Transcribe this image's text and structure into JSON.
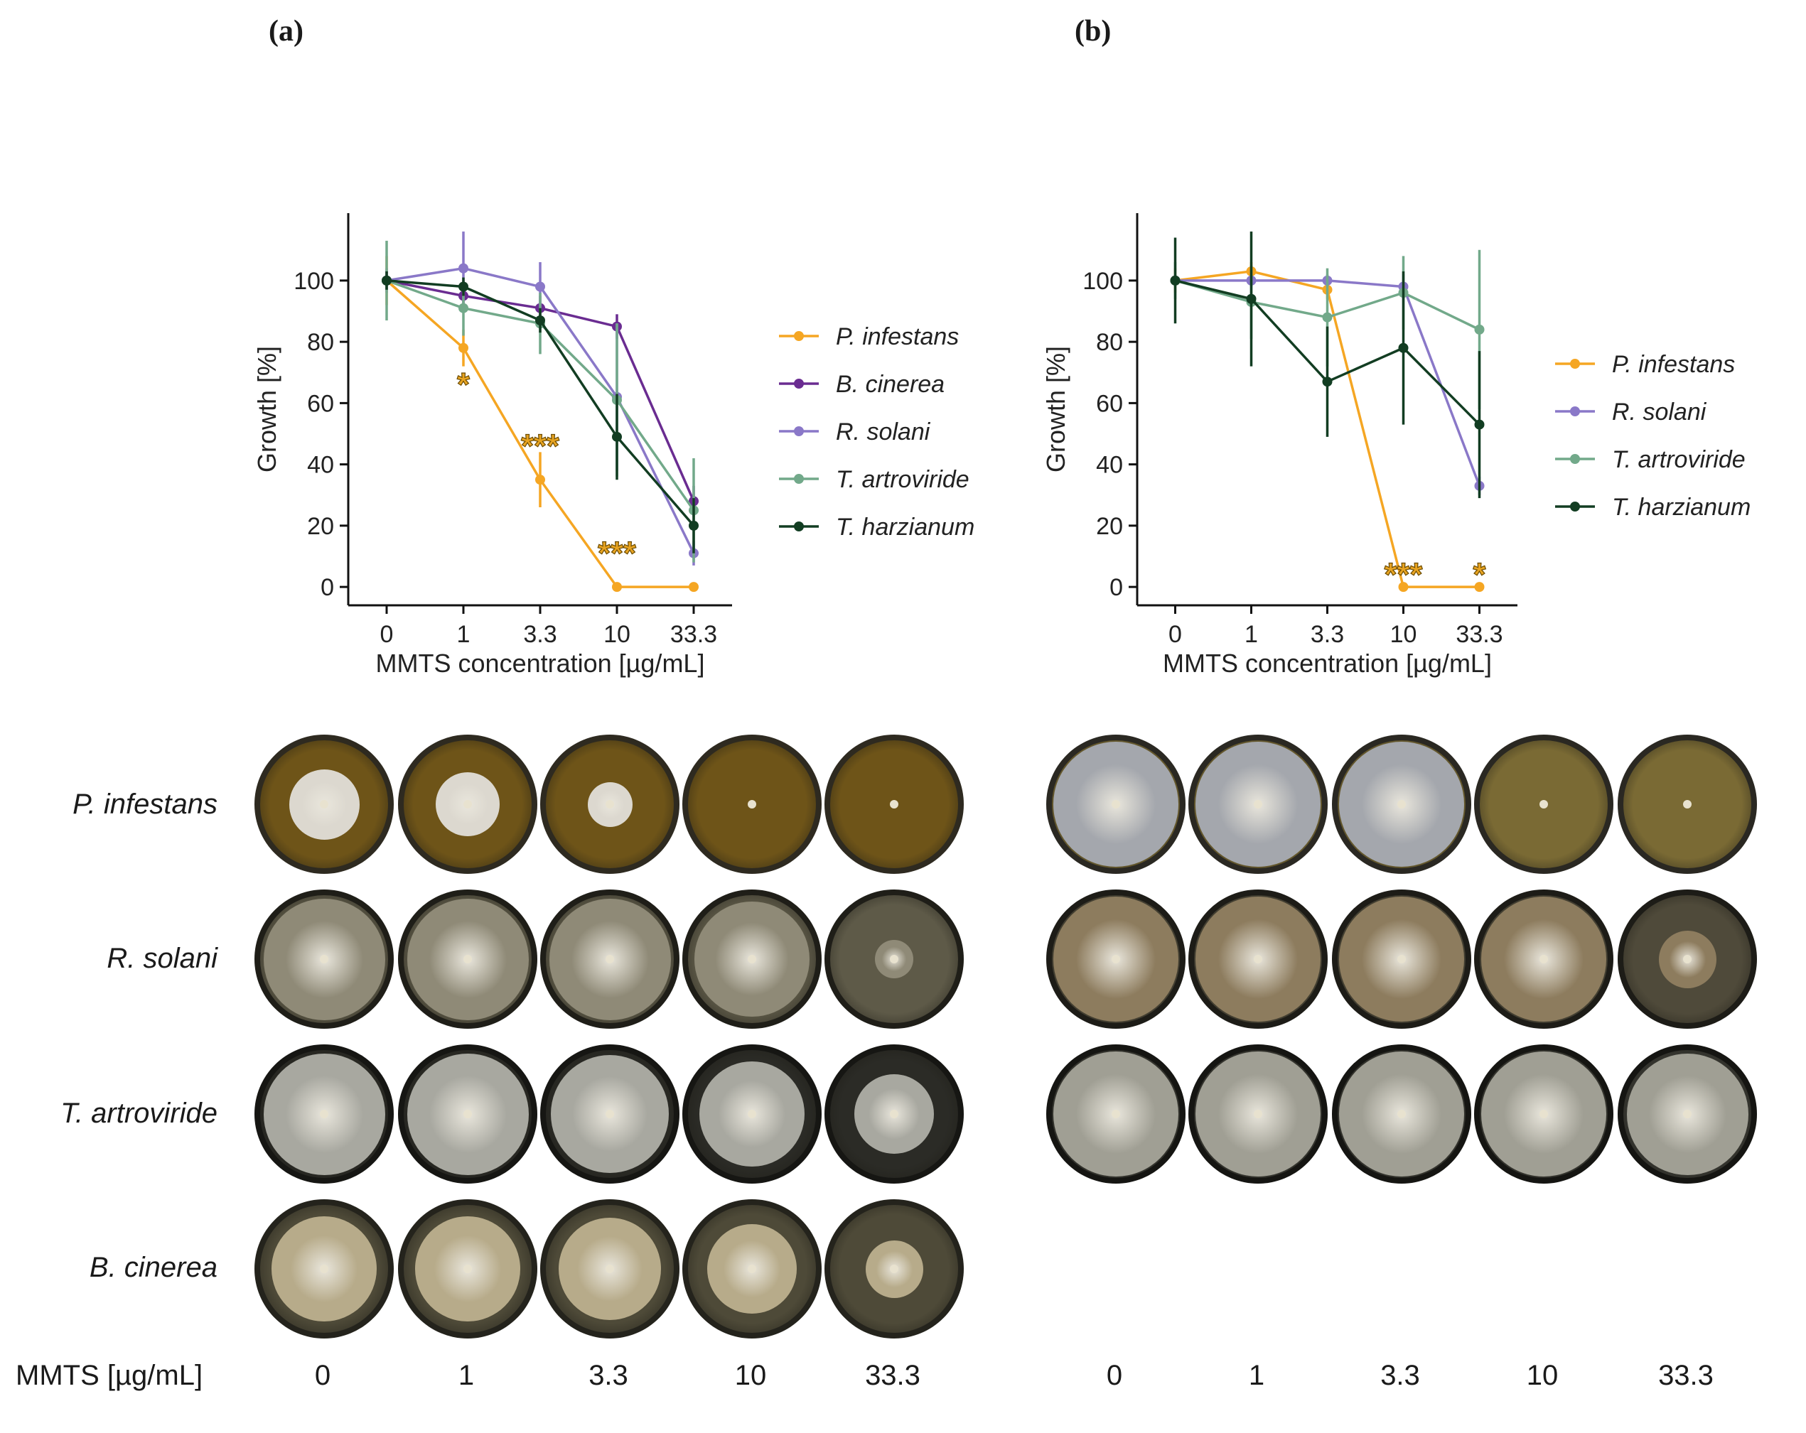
{
  "panel_labels": {
    "a": "(a)",
    "b": "(b)"
  },
  "chart_data": [
    {
      "type": "line",
      "panel": "(a)",
      "xlabel": "MMTS concentration [µg/mL]",
      "ylabel": "Growth [%]",
      "categories": [
        "0",
        "1",
        "3.3",
        "10",
        "33.3"
      ],
      "yticks": [
        0,
        20,
        40,
        60,
        80,
        100
      ],
      "ylim": [
        -6,
        122
      ],
      "series": [
        {
          "name": "P. infestans",
          "color": "#f5a623",
          "values": [
            100,
            78,
            35,
            0,
            0
          ],
          "err": [
            8,
            6,
            9,
            0,
            0
          ]
        },
        {
          "name": "B. cinerea",
          "color": "#6a2c91",
          "values": [
            100,
            95,
            91,
            85,
            28
          ],
          "err": [
            3,
            3,
            4,
            4,
            5
          ]
        },
        {
          "name": "R. solani",
          "color": "#8a78c8",
          "values": [
            100,
            104,
            98,
            62,
            11
          ],
          "err": [
            4,
            12,
            8,
            24,
            4
          ]
        },
        {
          "name": "T. artroviride",
          "color": "#72a98a",
          "values": [
            100,
            91,
            86,
            61,
            25
          ],
          "err": [
            13,
            9,
            10,
            25,
            17
          ]
        },
        {
          "name": "T. harzianum",
          "color": "#123d22",
          "values": [
            100,
            98,
            87,
            49,
            20
          ],
          "err": [
            3,
            3,
            4,
            14,
            9
          ]
        }
      ],
      "annotations": [
        {
          "x": "1",
          "y": 67,
          "text": "*"
        },
        {
          "x": "3.3",
          "y": 47,
          "text": "***"
        },
        {
          "x": "10",
          "y": 12,
          "text": "***"
        }
      ],
      "legend": "right"
    },
    {
      "type": "line",
      "panel": "(b)",
      "xlabel": "MMTS concentration [µg/mL]",
      "ylabel": "Growth [%]",
      "categories": [
        "0",
        "1",
        "3.3",
        "10",
        "33.3"
      ],
      "yticks": [
        0,
        20,
        40,
        60,
        80,
        100
      ],
      "ylim": [
        -6,
        122
      ],
      "series": [
        {
          "name": "P. infestans",
          "color": "#f5a623",
          "values": [
            100,
            103,
            97,
            0,
            0
          ],
          "err": [
            4,
            3,
            3,
            0,
            0
          ]
        },
        {
          "name": "R. solani",
          "color": "#8a78c8",
          "values": [
            100,
            100,
            100,
            98,
            33
          ],
          "err": [
            2,
            2,
            2,
            4,
            3
          ]
        },
        {
          "name": "T. artroviride",
          "color": "#72a98a",
          "values": [
            100,
            93,
            88,
            96,
            84
          ],
          "err": [
            6,
            12,
            16,
            12,
            26
          ]
        },
        {
          "name": "T. harzianum",
          "color": "#123d22",
          "values": [
            100,
            94,
            67,
            78,
            53
          ],
          "err": [
            14,
            22,
            18,
            25,
            24
          ]
        }
      ],
      "annotations": [
        {
          "x": "10",
          "y": 5,
          "text": "***"
        },
        {
          "x": "33.3",
          "y": 5,
          "text": "*"
        }
      ],
      "legend": "right"
    }
  ],
  "photo_grid": {
    "species_rows": [
      "P. infestans",
      "R. solani",
      "T. artroviride",
      "B. cinerea"
    ],
    "concentration_row_title": "MMTS [µg/mL]",
    "concentrations_a": [
      "0",
      "1",
      "3.3",
      "10",
      "33.3"
    ],
    "concentrations_b": [
      "0",
      "1",
      "3.3",
      "10",
      "33.3"
    ]
  },
  "dish_colors": {
    "p_infestans_agar": "#6e5418",
    "p_infestans_colony": "#dcd8cf",
    "r_solani_agar": "#5e5a48",
    "r_solani_colony": "#8f8a77",
    "t_artroviride_agar": "#2b2b26",
    "t_artroviride_colony": "#a8a8a0",
    "b_cinerea_agar": "#4e4a38",
    "b_cinerea_colony": "#b7ab8a"
  }
}
